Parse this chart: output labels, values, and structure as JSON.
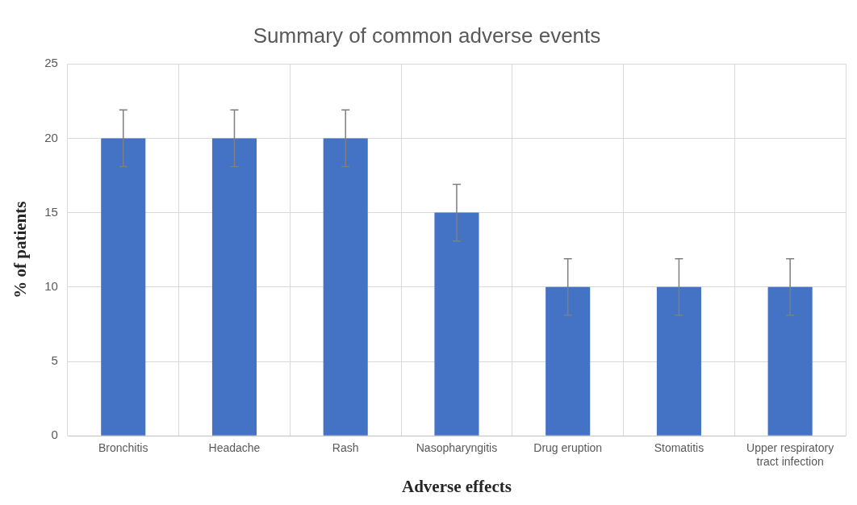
{
  "chart_data": {
    "type": "bar",
    "title": "Summary of common adverse events",
    "xlabel": "Adverse effects",
    "ylabel": "% of patients",
    "categories": [
      "Bronchitis",
      "Headache",
      "Rash",
      "Nasopharyngitis",
      "Drug eruption",
      "Stomatitis",
      "Upper respiratory tract infection"
    ],
    "values": [
      20,
      20,
      20,
      15,
      10,
      10,
      10
    ],
    "errors": [
      1.9,
      1.9,
      1.9,
      1.9,
      1.9,
      1.9,
      1.9
    ],
    "color": "#4472c4",
    "ylim": [
      0,
      25
    ],
    "yticks": [
      0,
      5,
      10,
      15,
      20,
      25
    ],
    "grid": true
  }
}
